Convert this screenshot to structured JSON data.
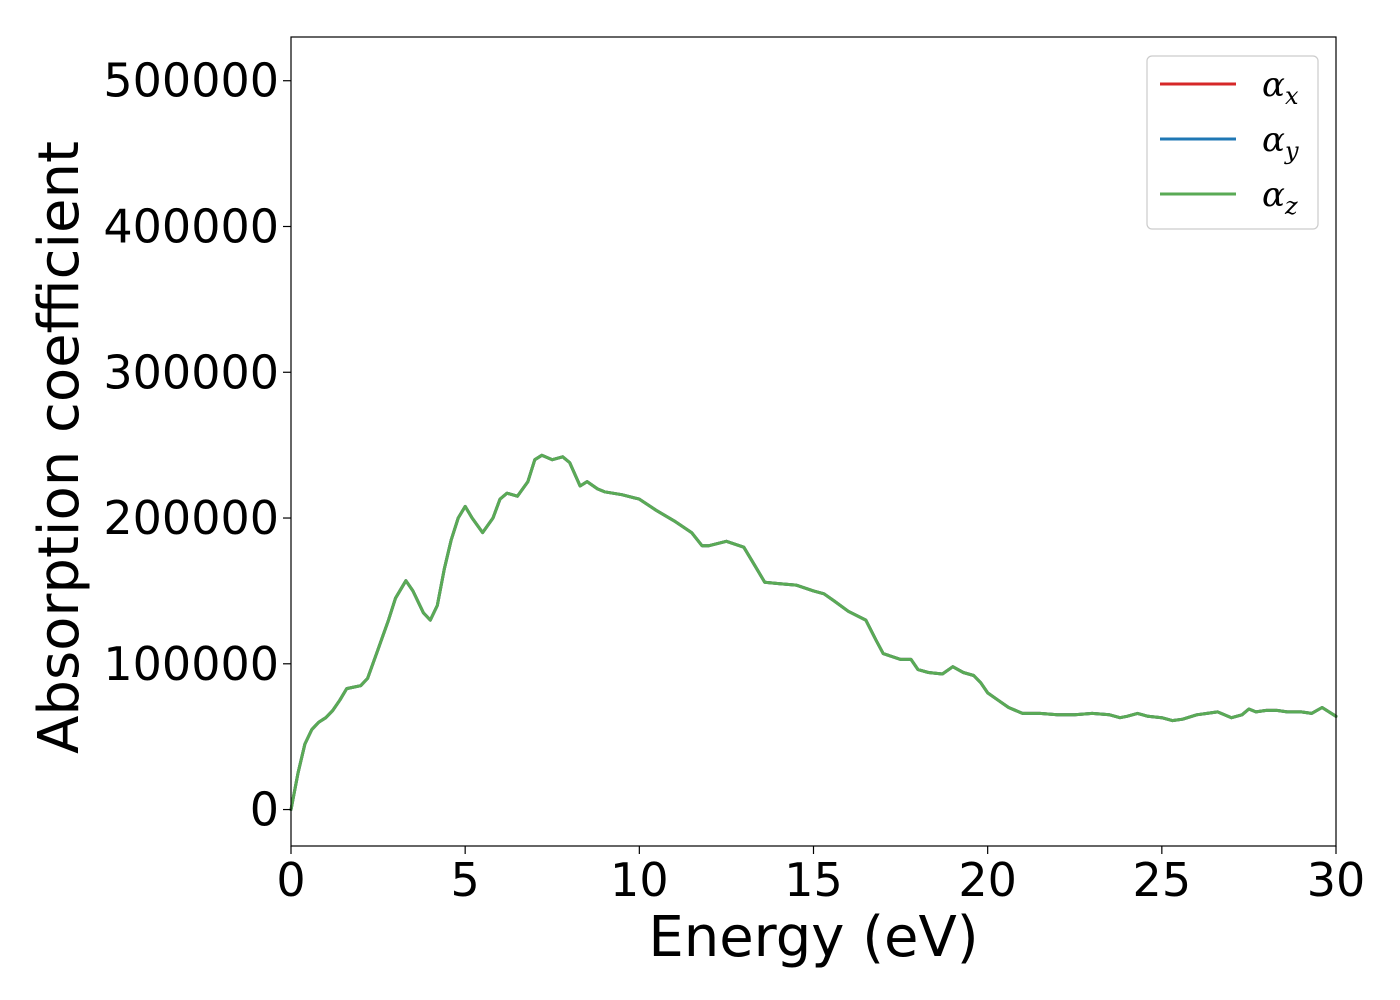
{
  "chart_data": {
    "type": "line",
    "xlabel": "Energy (eV)",
    "ylabel": "Absorption coefficient",
    "xlim": [
      0,
      30
    ],
    "ylim": [
      -25000,
      530000
    ],
    "xticks": [
      0,
      5,
      10,
      15,
      20,
      25,
      30
    ],
    "yticks": [
      0,
      100000,
      200000,
      300000,
      400000,
      500000
    ],
    "grid": false,
    "legend_position": "top-right",
    "legend": [
      {
        "symbol": "α",
        "subscript": "x",
        "color": "#d62728"
      },
      {
        "symbol": "α",
        "subscript": "y",
        "color": "#1f77b4"
      },
      {
        "symbol": "α",
        "subscript": "z",
        "color": "#5aaa55"
      }
    ],
    "series": [
      {
        "name": "αx",
        "color": "#d62728",
        "x": [
          0,
          0.2,
          0.4,
          0.6,
          0.8,
          1.0,
          1.2,
          1.4,
          1.6,
          1.8,
          2.0,
          2.2,
          2.5,
          2.8,
          3.0,
          3.3,
          3.5,
          3.8,
          4.0,
          4.2,
          4.4,
          4.6,
          4.8,
          5.0,
          5.2,
          5.5,
          5.8,
          6.0,
          6.2,
          6.5,
          6.8,
          7.0,
          7.2,
          7.5,
          7.8,
          8.0,
          8.3,
          8.5,
          8.8,
          9.0,
          9.5,
          10.0,
          10.5,
          11.0,
          11.5,
          11.8,
          12.0,
          12.5,
          13.0,
          13.3,
          13.6,
          14.0,
          14.5,
          15.0,
          15.3,
          15.6,
          16.0,
          16.5,
          16.8,
          17.0,
          17.5,
          17.8,
          18.0,
          18.3,
          18.7,
          19.0,
          19.3,
          19.6,
          19.8,
          20.0,
          20.3,
          20.6,
          21.0,
          21.5,
          22.0,
          22.5,
          23.0,
          23.5,
          23.8,
          24.0,
          24.3,
          24.6,
          25.0,
          25.3,
          25.6,
          26.0,
          26.3,
          26.6,
          27.0,
          27.3,
          27.5,
          27.7,
          28.0,
          28.3,
          28.6,
          29.0,
          29.3,
          29.6,
          30.0
        ],
        "y": [
          0,
          25000,
          45000,
          55000,
          60000,
          63000,
          68000,
          75000,
          83000,
          84000,
          85000,
          90000,
          110000,
          130000,
          145000,
          157000,
          150000,
          135000,
          130000,
          140000,
          165000,
          185000,
          200000,
          208000,
          200000,
          190000,
          200000,
          213000,
          217000,
          215000,
          225000,
          240000,
          243000,
          240000,
          242000,
          238000,
          222000,
          225000,
          220000,
          218000,
          216000,
          213000,
          205000,
          198000,
          190000,
          181000,
          181000,
          184000,
          180000,
          168000,
          156000,
          155000,
          154000,
          150000,
          148000,
          143000,
          136000,
          130000,
          116000,
          107000,
          103000,
          103000,
          96000,
          94000,
          93000,
          98000,
          94000,
          92000,
          87000,
          80000,
          75000,
          70000,
          66000,
          66000,
          65000,
          65000,
          66000,
          65000,
          63000,
          64000,
          66000,
          64000,
          63000,
          61000,
          62000,
          65000,
          66000,
          67000,
          63000,
          65000,
          69000,
          67000,
          68000,
          68000,
          67000,
          67000,
          66000,
          70000,
          64000
        ]
      },
      {
        "name": "αy",
        "color": "#1f77b4",
        "x": [
          0,
          0.2,
          0.4,
          0.6,
          0.8,
          1.0,
          1.2,
          1.4,
          1.6,
          1.8,
          2.0,
          2.2,
          2.5,
          2.8,
          3.0,
          3.3,
          3.5,
          3.8,
          4.0,
          4.2,
          4.4,
          4.6,
          4.8,
          5.0,
          5.2,
          5.5,
          5.8,
          6.0,
          6.2,
          6.5,
          6.8,
          7.0,
          7.2,
          7.5,
          7.8,
          8.0,
          8.3,
          8.5,
          8.8,
          9.0,
          9.5,
          10.0,
          10.5,
          11.0,
          11.5,
          11.8,
          12.0,
          12.5,
          13.0,
          13.3,
          13.6,
          14.0,
          14.5,
          15.0,
          15.3,
          15.6,
          16.0,
          16.5,
          16.8,
          17.0,
          17.5,
          17.8,
          18.0,
          18.3,
          18.7,
          19.0,
          19.3,
          19.6,
          19.8,
          20.0,
          20.3,
          20.6,
          21.0,
          21.5,
          22.0,
          22.5,
          23.0,
          23.5,
          23.8,
          24.0,
          24.3,
          24.6,
          25.0,
          25.3,
          25.6,
          26.0,
          26.3,
          26.6,
          27.0,
          27.3,
          27.5,
          27.7,
          28.0,
          28.3,
          28.6,
          29.0,
          29.3,
          29.6,
          30.0
        ],
        "y": [
          0,
          25000,
          45000,
          55000,
          60000,
          63000,
          68000,
          75000,
          83000,
          84000,
          85000,
          90000,
          110000,
          130000,
          145000,
          157000,
          150000,
          135000,
          130000,
          140000,
          165000,
          185000,
          200000,
          208000,
          200000,
          190000,
          200000,
          213000,
          217000,
          215000,
          225000,
          240000,
          243000,
          240000,
          242000,
          238000,
          222000,
          225000,
          220000,
          218000,
          216000,
          213000,
          205000,
          198000,
          190000,
          181000,
          181000,
          184000,
          180000,
          168000,
          156000,
          155000,
          154000,
          150000,
          148000,
          143000,
          136000,
          130000,
          116000,
          107000,
          103000,
          103000,
          96000,
          94000,
          93000,
          98000,
          94000,
          92000,
          87000,
          80000,
          75000,
          70000,
          66000,
          66000,
          65000,
          65000,
          66000,
          65000,
          63000,
          64000,
          66000,
          64000,
          63000,
          61000,
          62000,
          65000,
          66000,
          67000,
          63000,
          65000,
          69000,
          67000,
          68000,
          68000,
          67000,
          67000,
          66000,
          70000,
          64000
        ]
      },
      {
        "name": "αz",
        "color": "#5aaa55",
        "x": [
          0,
          0.2,
          0.4,
          0.6,
          0.8,
          1.0,
          1.2,
          1.4,
          1.6,
          1.8,
          2.0,
          2.2,
          2.5,
          2.8,
          3.0,
          3.3,
          3.5,
          3.8,
          4.0,
          4.2,
          4.4,
          4.6,
          4.8,
          5.0,
          5.2,
          5.5,
          5.8,
          6.0,
          6.2,
          6.5,
          6.8,
          7.0,
          7.2,
          7.5,
          7.8,
          8.0,
          8.3,
          8.5,
          8.8,
          9.0,
          9.5,
          10.0,
          10.5,
          11.0,
          11.5,
          11.8,
          12.0,
          12.5,
          13.0,
          13.3,
          13.6,
          14.0,
          14.5,
          15.0,
          15.3,
          15.6,
          16.0,
          16.5,
          16.8,
          17.0,
          17.5,
          17.8,
          18.0,
          18.3,
          18.7,
          19.0,
          19.3,
          19.6,
          19.8,
          20.0,
          20.3,
          20.6,
          21.0,
          21.5,
          22.0,
          22.5,
          23.0,
          23.5,
          23.8,
          24.0,
          24.3,
          24.6,
          25.0,
          25.3,
          25.6,
          26.0,
          26.3,
          26.6,
          27.0,
          27.3,
          27.5,
          27.7,
          28.0,
          28.3,
          28.6,
          29.0,
          29.3,
          29.6,
          30.0
        ],
        "y": [
          0,
          25000,
          45000,
          55000,
          60000,
          63000,
          68000,
          75000,
          83000,
          84000,
          85000,
          90000,
          110000,
          130000,
          145000,
          157000,
          150000,
          135000,
          130000,
          140000,
          165000,
          185000,
          200000,
          208000,
          200000,
          190000,
          200000,
          213000,
          217000,
          215000,
          225000,
          240000,
          243000,
          240000,
          242000,
          238000,
          222000,
          225000,
          220000,
          218000,
          216000,
          213000,
          205000,
          198000,
          190000,
          181000,
          181000,
          184000,
          180000,
          168000,
          156000,
          155000,
          154000,
          150000,
          148000,
          143000,
          136000,
          130000,
          116000,
          107000,
          103000,
          103000,
          96000,
          94000,
          93000,
          98000,
          94000,
          92000,
          87000,
          80000,
          75000,
          70000,
          66000,
          66000,
          65000,
          65000,
          66000,
          65000,
          63000,
          64000,
          66000,
          64000,
          63000,
          61000,
          62000,
          65000,
          66000,
          67000,
          63000,
          65000,
          69000,
          67000,
          68000,
          68000,
          67000,
          67000,
          66000,
          70000,
          64000
        ]
      }
    ]
  }
}
